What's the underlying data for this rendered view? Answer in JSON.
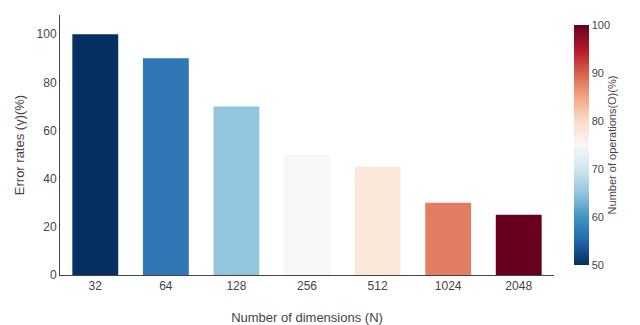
{
  "chart_data": {
    "type": "bar",
    "categories": [
      "32",
      "64",
      "128",
      "256",
      "512",
      "1024",
      "2048"
    ],
    "values": [
      100,
      90,
      70,
      50,
      45,
      30,
      25
    ],
    "color_values": [
      50,
      57,
      65,
      75,
      78,
      88,
      100
    ],
    "clim": [
      50,
      100
    ],
    "colorbar_ticks": [
      50,
      60,
      70,
      80,
      90,
      100
    ],
    "colorbar_label": "Number of operations(O)(%)",
    "xlabel": "Number of dimensions (N)",
    "ylabel": "Error rates (γ)(%)",
    "ylim": [
      0,
      108
    ],
    "yticks": [
      0,
      20,
      40,
      60,
      80,
      100
    ],
    "grid": false
  }
}
